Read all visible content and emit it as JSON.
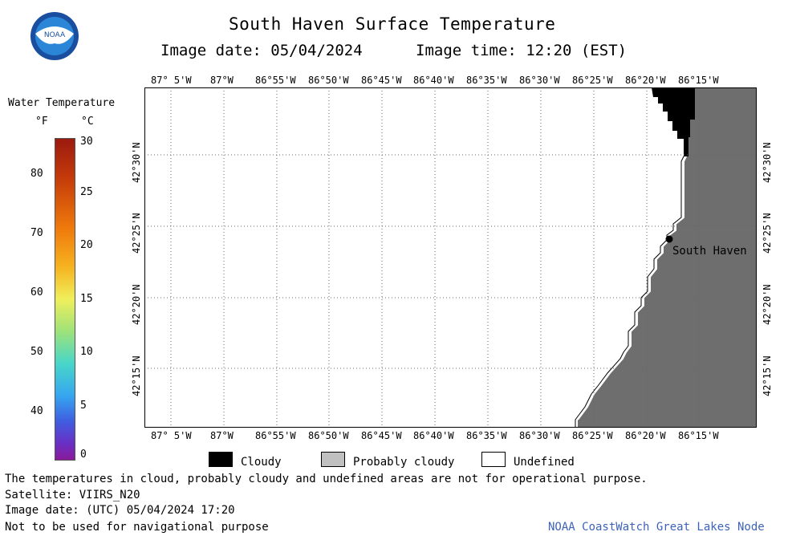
{
  "header": {
    "title": "South Haven Surface Temperature",
    "image_date": "Image date: 05/04/2024",
    "image_time": "Image time: 12:20 (EST)"
  },
  "logo": {
    "text": "NOAA",
    "icon": "noaa-logo-icon"
  },
  "colorbar": {
    "title": "Water Temperature",
    "unit_f": "°F",
    "unit_c": "°C",
    "f_ticks": [
      "80",
      "70",
      "60",
      "50",
      "40"
    ],
    "c_ticks": [
      "30",
      "25",
      "20",
      "15",
      "10",
      "5",
      "0"
    ]
  },
  "map": {
    "lon_labels": [
      "87° 5'W",
      "87°W",
      "86°55'W",
      "86°50'W",
      "86°45'W",
      "86°40'W",
      "86°35'W",
      "86°30'W",
      "86°25'W",
      "86°20'W",
      "86°15'W"
    ],
    "lat_labels": [
      "42°30'N",
      "42°25'N",
      "42°20'N",
      "42°15'N"
    ],
    "city": "South Haven"
  },
  "legend": {
    "cloudy": "Cloudy",
    "probably_cloudy": "Probably cloudy",
    "undefined": "Undefined"
  },
  "footer": {
    "note": "The temperatures in cloud, probably cloudy and undefined areas are not for operational purpose.",
    "satellite": "Satellite: VIIRS_N20",
    "utc_date": "Image date: (UTC) 05/04/2024  17:20",
    "nav": "Not to be used for navigational purpose",
    "credit": "NOAA CoastWatch Great Lakes Node"
  },
  "colors": {
    "land": "#6e6e6e",
    "cloud": "#000000",
    "probably_cloudy": "#c0c0c0",
    "undefined": "#ffffff",
    "credit": "#3d63b8"
  }
}
